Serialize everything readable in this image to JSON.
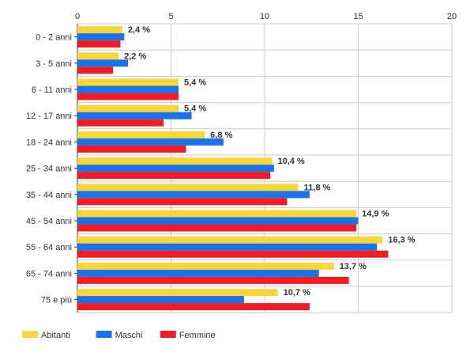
{
  "chart_data": {
    "type": "bar",
    "orientation": "horizontal",
    "categories": [
      "0 - 2 anni",
      "3 - 5 anni",
      "6 - 11 anni",
      "12 - 17 anni",
      "18 - 24 anni",
      "25 - 34 anni",
      "35 - 44 anni",
      "45 - 54 anni",
      "55 - 64 anni",
      "65 - 74 anni",
      "75 e più"
    ],
    "series": [
      {
        "name": "Abitanti",
        "color": "#f9d63a",
        "values": [
          2.4,
          2.2,
          5.4,
          5.4,
          6.8,
          10.4,
          11.8,
          14.9,
          16.3,
          13.7,
          10.7
        ]
      },
      {
        "name": "Maschi",
        "color": "#1a73e8",
        "values": [
          2.5,
          2.7,
          5.4,
          6.1,
          7.8,
          10.5,
          12.4,
          15.0,
          16.0,
          12.9,
          8.9
        ]
      },
      {
        "name": "Femmine",
        "color": "#f21c24",
        "values": [
          2.3,
          1.9,
          5.4,
          4.6,
          5.8,
          10.3,
          11.2,
          14.9,
          16.6,
          14.5,
          12.4
        ]
      }
    ],
    "data_labels": [
      "2,4 %",
      "2,2 %",
      "5,4 %",
      "5,4 %",
      "6,8 %",
      "10,4 %",
      "11,8 %",
      "14,9 %",
      "16,3 %",
      "13,7 %",
      "10,7 %"
    ],
    "x_ticks": [
      "0",
      "5",
      "10",
      "15",
      "20"
    ],
    "xlim": [
      0,
      20
    ],
    "grid": true,
    "axis_position": "top",
    "legend_position": "bottom-left"
  }
}
